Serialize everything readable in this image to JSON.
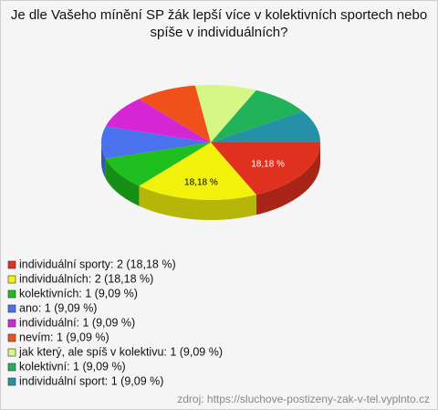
{
  "chart_data": {
    "type": "pie3d",
    "title": "Je dle Vašeho mínění SP žák lepší více v kolektivních sportech nebo spíše v individuálních?",
    "categories": [
      "individuální sporty: 2 (18,18 %)",
      "individuálních: 2 (18,18 %)",
      "kolektivních: 1 (9,09 %)",
      "ano: 1 (9,09 %)",
      "individuální: 1 (9,09 %)",
      "nevím: 1 (9,09 %)",
      "jak který, ale spíš v kolektivu: 1 (9,09 %)",
      "kolektivní: 1 (9,09 %)",
      "individuální sport: 1 (9,09 %)"
    ],
    "values": [
      18.18,
      18.18,
      9.09,
      9.09,
      9.09,
      9.09,
      9.09,
      9.09,
      9.09
    ],
    "value_labels": [
      "18,18 %",
      "18,18 %",
      null,
      null,
      null,
      null,
      null,
      null,
      null
    ],
    "colors": [
      "#e0301e",
      "#f2f20c",
      "#1fbf1f",
      "#4a72ee",
      "#d526d5",
      "#f0501a",
      "#d6f685",
      "#22b35a",
      "#2690a6"
    ],
    "source": "zdroj: https://sluchove-postizeny-zak-v-tel.vyplnto.cz"
  }
}
